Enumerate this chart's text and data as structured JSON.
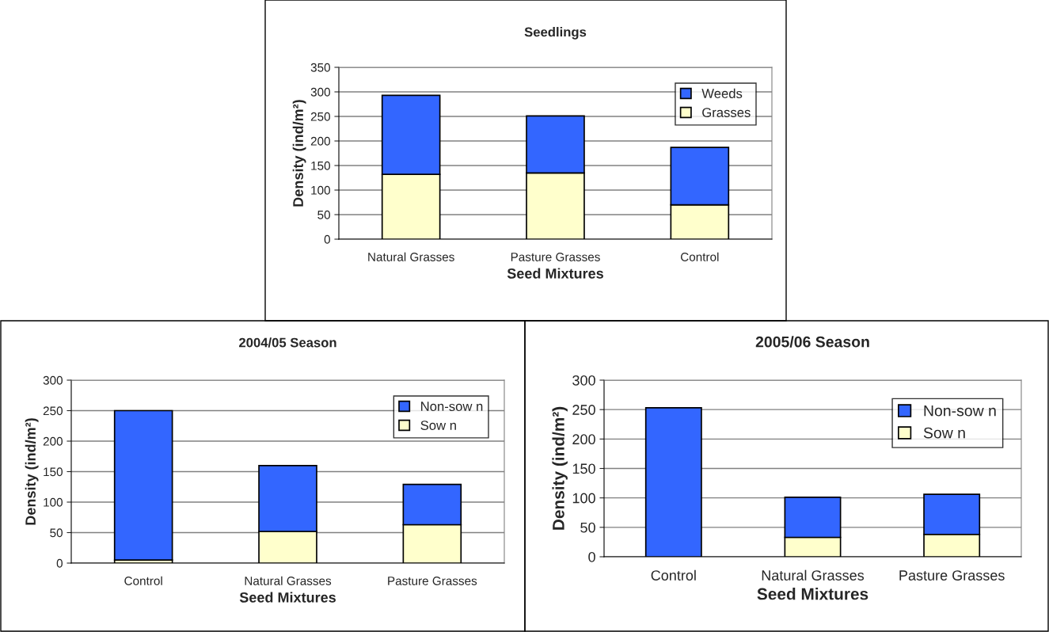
{
  "chart_data": [
    {
      "type": "bar",
      "title": "Seedlings",
      "xlabel": "Seed Mixtures",
      "ylabel": "Density (ind/m²)",
      "categories": [
        "Natural Grasses",
        "Pasture Grasses",
        "Control"
      ],
      "stacked": true,
      "series": [
        {
          "name": "Grasses",
          "color": "#ffffcc",
          "values": [
            132,
            135,
            70
          ]
        },
        {
          "name": "Weeds",
          "color": "#3366ff",
          "values": [
            161,
            116,
            117
          ]
        }
      ],
      "ylim": [
        0,
        350
      ],
      "yticks": [
        0,
        50,
        100,
        150,
        200,
        250,
        300,
        350
      ],
      "grid": "y",
      "legend": "top right"
    },
    {
      "type": "bar",
      "title": "2004/05 Season",
      "xlabel": "Seed Mixtures",
      "ylabel": "Density (ind/m²)",
      "categories": [
        "Control",
        "Natural Grasses",
        "Pasture Grasses"
      ],
      "stacked": true,
      "series": [
        {
          "name": "Sow n",
          "color": "#ffffcc",
          "values": [
            5,
            52,
            63
          ]
        },
        {
          "name": "Non-sow n",
          "color": "#3366ff",
          "values": [
            245,
            108,
            66
          ]
        }
      ],
      "ylim": [
        0,
        300
      ],
      "yticks": [
        0,
        50,
        100,
        150,
        200,
        250,
        300
      ],
      "grid": "y",
      "legend": "top right"
    },
    {
      "type": "bar",
      "title": "2005/06 Season",
      "xlabel": "Seed Mixtures",
      "ylabel": "Density (ind/m²)",
      "categories": [
        "Control",
        "Natural Grasses",
        "Pasture Grasses"
      ],
      "stacked": true,
      "series": [
        {
          "name": "Sow n",
          "color": "#ffffcc",
          "values": [
            null,
            33,
            38
          ]
        },
        {
          "name": "Non-sow n",
          "color": "#3366ff",
          "values": [
            253,
            68,
            68
          ]
        }
      ],
      "ylim": [
        0,
        300
      ],
      "yticks": [
        0,
        50,
        100,
        150,
        200,
        250,
        300
      ],
      "grid": "y",
      "legend": "top right"
    }
  ]
}
